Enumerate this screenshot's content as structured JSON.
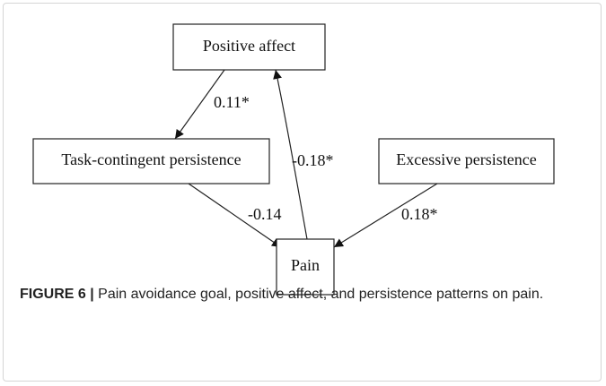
{
  "nodes": [
    {
      "label": "Positive affect"
    },
    {
      "label": "Task-contingent persistence"
    },
    {
      "label": "Excessive persistence"
    },
    {
      "label": "Pain"
    }
  ],
  "edges": [
    {
      "label": "0.11*"
    },
    {
      "label": "-0.18*"
    },
    {
      "label": "-0.14"
    },
    {
      "label": "0.18*"
    }
  ],
  "caption": {
    "figure_label": "FIGURE 6 |",
    "text": "Pain avoidance goal, positive affect, and persistence patterns on pain."
  }
}
